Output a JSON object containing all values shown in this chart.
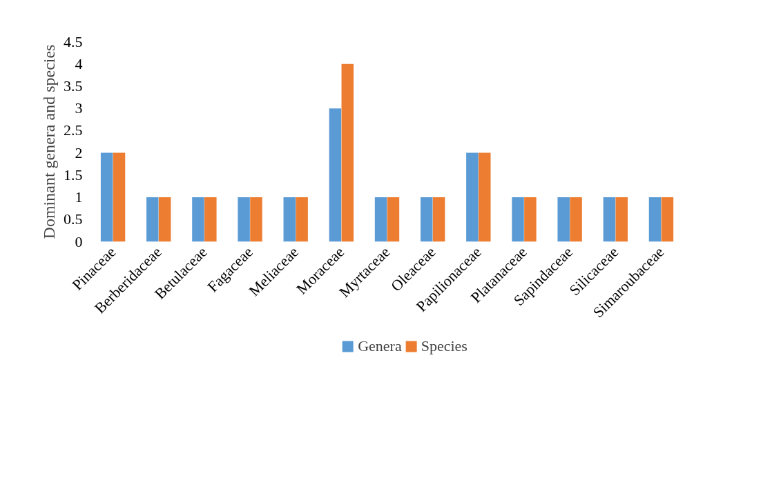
{
  "chart_data": {
    "type": "bar",
    "ylabel": "Dominant genera and species",
    "categories": [
      "Pinaceae",
      "Berberidaceae",
      "Betulaceae",
      "Fagaceae",
      "Meliaceae",
      "Moraceae",
      "Myrtaceae",
      "Oleaceae",
      "Papilionaceae",
      "Platanaceae",
      "Sapindaceae",
      "Silicaceae",
      "Simaroubaceae"
    ],
    "series": [
      {
        "name": "Genera",
        "color": "#5b9bd5",
        "values": [
          2,
          1,
          1,
          1,
          1,
          3,
          1,
          1,
          2,
          1,
          1,
          1,
          1
        ]
      },
      {
        "name": "Species",
        "color": "#ed7d31",
        "values": [
          2,
          1,
          1,
          1,
          1,
          4,
          1,
          1,
          2,
          1,
          1,
          1,
          1
        ]
      }
    ],
    "ylim": [
      0,
      4.5
    ],
    "yticks": [
      0,
      0.5,
      1,
      1.5,
      2,
      2.5,
      3,
      3.5,
      4,
      4.5
    ],
    "grid": false,
    "legend": "bottom"
  }
}
